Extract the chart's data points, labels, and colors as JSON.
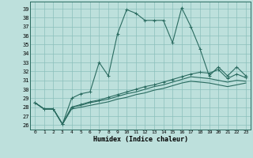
{
  "xlabel": "Humidex (Indice chaleur)",
  "background_color": "#bde0dc",
  "grid_color": "#8bbfbb",
  "line_color": "#2a6b60",
  "xlim": [
    -0.5,
    23.5
  ],
  "ylim": [
    25.5,
    39.8
  ],
  "yticks": [
    26,
    27,
    28,
    29,
    30,
    31,
    32,
    33,
    34,
    35,
    36,
    37,
    38,
    39
  ],
  "xticks": [
    0,
    1,
    2,
    3,
    4,
    5,
    6,
    7,
    8,
    9,
    10,
    11,
    12,
    13,
    14,
    15,
    16,
    17,
    18,
    19,
    20,
    21,
    22,
    23
  ],
  "main_line": [
    28.5,
    27.8,
    27.8,
    26.1,
    29.0,
    29.5,
    29.7,
    33.0,
    31.5,
    36.2,
    38.9,
    38.5,
    37.7,
    37.7,
    37.7,
    35.2,
    39.1,
    37.0,
    34.5,
    31.5,
    32.5,
    31.5,
    32.5,
    31.5
  ],
  "trend1": [
    28.5,
    27.8,
    27.8,
    26.1,
    28.0,
    28.3,
    28.6,
    28.8,
    29.1,
    29.4,
    29.7,
    30.0,
    30.3,
    30.5,
    30.8,
    31.1,
    31.4,
    31.7,
    31.9,
    31.8,
    32.2,
    31.2,
    31.7,
    31.3
  ],
  "trend2": [
    28.5,
    27.8,
    27.8,
    26.1,
    28.0,
    28.2,
    28.5,
    28.7,
    28.9,
    29.2,
    29.5,
    29.7,
    30.0,
    30.3,
    30.5,
    30.8,
    31.1,
    31.4,
    31.3,
    31.2,
    31.0,
    30.8,
    31.0,
    30.9
  ],
  "trend3": [
    28.5,
    27.8,
    27.8,
    26.1,
    27.8,
    28.0,
    28.2,
    28.4,
    28.6,
    28.9,
    29.1,
    29.4,
    29.6,
    29.9,
    30.1,
    30.4,
    30.7,
    30.9,
    30.8,
    30.7,
    30.5,
    30.3,
    30.5,
    30.7
  ]
}
